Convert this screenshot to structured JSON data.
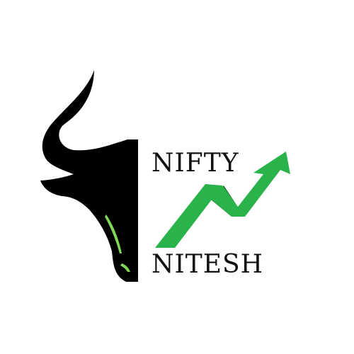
{
  "logo": {
    "word_top": "NIFTY",
    "word_bottom": "NITESH",
    "icons": [
      "bull-head-icon",
      "uptrend-arrow-icon"
    ],
    "colors": {
      "bull": "#000000",
      "bull_accent": "#7ed957",
      "arrow_light": "#2ab34a",
      "arrow_dark": "#1c6b2a",
      "text": "#111111",
      "background": "#ffffff"
    }
  }
}
